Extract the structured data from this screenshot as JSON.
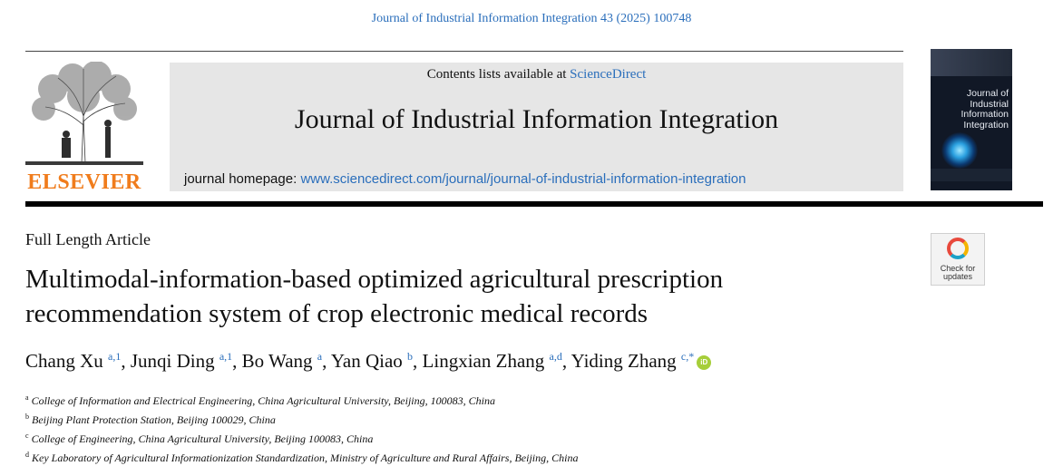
{
  "citation": "Journal of Industrial Information Integration 43 (2025) 100748",
  "masthead": {
    "contents_prefix": "Contents lists available at ",
    "contents_link": "ScienceDirect",
    "journal_name": "Journal of Industrial Information Integration",
    "homepage_prefix": "journal homepage: ",
    "homepage_url": "www.sciencedirect.com/journal/journal-of-industrial-information-integration"
  },
  "publisher": {
    "logo_text": "ELSEVIER",
    "logo_color": "#f07c1c"
  },
  "cover": {
    "title": "Journal of Industrial Information Integration"
  },
  "check_badge": {
    "line1": "Check for",
    "line2": "updates"
  },
  "article": {
    "type": "Full Length Article",
    "title_line1": "Multimodal-information-based optimized agricultural prescription",
    "title_line2": "recommendation system of crop electronic medical records"
  },
  "authors": [
    {
      "name": "Chang Xu",
      "sup": "a,1",
      "sep": ", "
    },
    {
      "name": "Junqi Ding",
      "sup": "a,1",
      "sep": ", "
    },
    {
      "name": "Bo Wang",
      "sup": "a",
      "sep": ", "
    },
    {
      "name": "Yan Qiao",
      "sup": "b",
      "sep": ", "
    },
    {
      "name": "Lingxian Zhang",
      "sup": "a,d",
      "sep": ", "
    },
    {
      "name": "Yiding Zhang",
      "sup": "c,*",
      "sep": ""
    }
  ],
  "affiliations": [
    {
      "key": "a",
      "text": "College of Information and Electrical Engineering, China Agricultural University, Beijing, 100083, China"
    },
    {
      "key": "b",
      "text": "Beijing Plant Protection Station, Beijing 100029, China"
    },
    {
      "key": "c",
      "text": "College of Engineering, China Agricultural University, Beijing 100083, China"
    },
    {
      "key": "d",
      "text": "Key Laboratory of Agricultural Informationization Standardization, Ministry of Agriculture and Rural Affairs, Beijing, China"
    }
  ],
  "colors": {
    "link": "#2a6ebb",
    "masthead_bg": "#e6e6e6",
    "orcid": "#a6ce39"
  },
  "icons": {
    "orcid": "orcid-icon",
    "crossmark": "check-for-updates-icon",
    "logo": "elsevier-tree-logo"
  }
}
